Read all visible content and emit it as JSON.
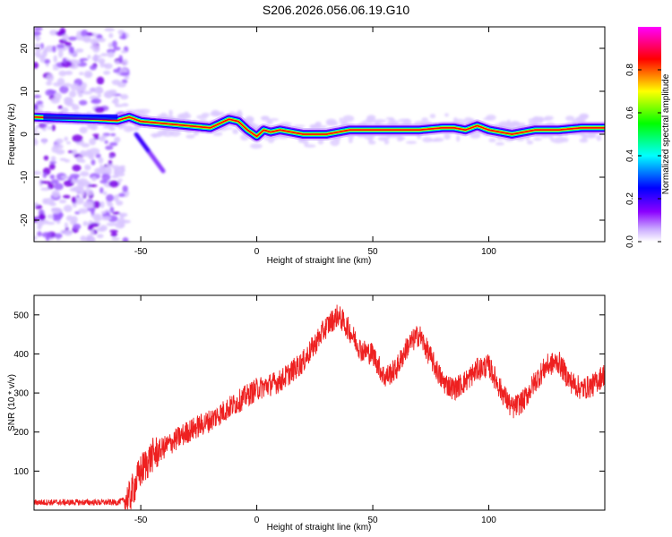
{
  "title": "S206.2026.056.06.19.G10",
  "chart_data": [
    {
      "type": "heatmap",
      "name": "spectrogram",
      "xlabel": "Height of straight line (km)",
      "ylabel": "Frequency (Hz)",
      "xlim": [
        -96,
        150
      ],
      "ylim": [
        -25,
        25
      ],
      "xticks": [
        -50,
        0,
        50,
        100
      ],
      "yticks": [
        -20,
        -10,
        0,
        10,
        20
      ],
      "colorbar": {
        "label": "Normalized spectral amplitude",
        "range": [
          0,
          1
        ],
        "ticks": [
          "0.0",
          "0.2",
          "0.4",
          "0.6",
          "0.8"
        ],
        "colormap": [
          "#ffffff",
          "#8b00ff",
          "#0000ff",
          "#00ffff",
          "#00ff00",
          "#ffff00",
          "#ff0000",
          "#ff00ff"
        ]
      },
      "ridge": {
        "x": [
          -96,
          -70,
          -60,
          -55,
          -50,
          -40,
          -30,
          -20,
          -12,
          -8,
          -4,
          0,
          3,
          6,
          10,
          20,
          30,
          35,
          40,
          50,
          60,
          70,
          80,
          85,
          90,
          95,
          100,
          105,
          110,
          115,
          120,
          130,
          140,
          150
        ],
        "freq": [
          4,
          3.5,
          3.2,
          4,
          3,
          2.5,
          2,
          1.5,
          3.5,
          3,
          1,
          -0.5,
          1,
          0.5,
          1,
          0,
          0,
          0.5,
          1,
          1,
          1,
          1,
          1.5,
          1.5,
          1,
          2,
          1,
          0.5,
          0,
          0.5,
          1,
          1,
          1.5,
          1.5
        ]
      },
      "noise_region_end_x": -56
    },
    {
      "type": "line",
      "name": "snr",
      "xlabel": "Height of straight line (km)",
      "ylabel": "SNR (10 * v/v)",
      "xlim": [
        -96,
        150
      ],
      "ylim": [
        0,
        550
      ],
      "xticks": [
        -50,
        0,
        50,
        100
      ],
      "yticks": [
        100,
        200,
        300,
        400,
        500
      ],
      "color": "#ee2020",
      "trend": {
        "x": [
          -96,
          -60,
          -55,
          -50,
          -45,
          -40,
          -30,
          -20,
          -10,
          0,
          10,
          20,
          30,
          35,
          40,
          45,
          50,
          55,
          60,
          65,
          70,
          75,
          80,
          85,
          90,
          95,
          100,
          105,
          110,
          115,
          120,
          125,
          130,
          135,
          140,
          145,
          150
        ],
        "y": [
          20,
          20,
          30,
          100,
          140,
          160,
          200,
          230,
          270,
          310,
          330,
          380,
          470,
          500,
          460,
          410,
          400,
          340,
          360,
          420,
          450,
          390,
          330,
          310,
          330,
          360,
          370,
          310,
          260,
          280,
          330,
          370,
          380,
          330,
          310,
          320,
          350
        ]
      },
      "noise_amplitude": 50
    }
  ]
}
